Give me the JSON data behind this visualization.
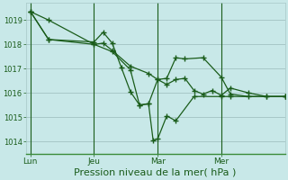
{
  "background_color": "#c8e8e8",
  "grid_color": "#a8c8c8",
  "line_color": "#1a5c1a",
  "xlabel": "Pression niveau de la mer( hPa )",
  "xlabel_fontsize": 8,
  "ylim": [
    1013.5,
    1019.7
  ],
  "yticks": [
    1014,
    1015,
    1016,
    1017,
    1018,
    1019
  ],
  "xtick_labels": [
    "Lun",
    "Jeu",
    "Mar",
    "Mer"
  ],
  "xtick_pos": [
    0,
    14,
    28,
    42
  ],
  "xlim": [
    -1,
    56
  ],
  "vline_pos": [
    0,
    14,
    28,
    42
  ],
  "series1_x": [
    0,
    4,
    14,
    16,
    18,
    22,
    26,
    28,
    30,
    32,
    34,
    36,
    38,
    40,
    42,
    44,
    48,
    52,
    56
  ],
  "series1_y": [
    1019.35,
    1018.2,
    1018.0,
    1018.05,
    1017.75,
    1017.1,
    1016.8,
    1016.55,
    1016.35,
    1016.55,
    1016.6,
    1016.1,
    1015.95,
    1016.1,
    1015.9,
    1016.2,
    1016.0,
    1015.85,
    1015.85
  ],
  "series2_x": [
    0,
    4,
    14,
    16,
    18,
    20,
    22,
    24,
    26,
    27,
    28,
    30,
    32,
    36,
    42,
    44,
    56
  ],
  "series2_y": [
    1019.35,
    1018.2,
    1018.1,
    1018.5,
    1018.05,
    1017.05,
    1016.05,
    1015.5,
    1015.55,
    1014.05,
    1014.1,
    1015.05,
    1014.85,
    1015.85,
    1015.85,
    1015.85,
    1015.85
  ],
  "series3_x": [
    0,
    4,
    14,
    18,
    22,
    24,
    26,
    28,
    30,
    32,
    34,
    38,
    42,
    44,
    48,
    52,
    56
  ],
  "series3_y": [
    1019.35,
    1019.0,
    1018.0,
    1017.7,
    1016.95,
    1015.5,
    1015.55,
    1016.55,
    1016.6,
    1017.45,
    1017.4,
    1017.45,
    1016.65,
    1015.95,
    1015.85,
    1015.85,
    1015.85
  ]
}
